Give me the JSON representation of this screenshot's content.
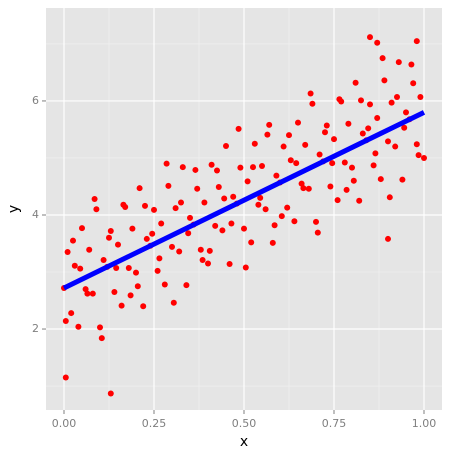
{
  "chart_data": {
    "type": "scatter",
    "x_label": "x",
    "y_label": "y",
    "color": "#ff0000",
    "xlim": [
      -0.05,
      1.05
    ],
    "ylim": [
      0.58,
      7.63
    ],
    "xticks": [
      {
        "value": 0,
        "label": "0.00"
      },
      {
        "value": 0.25,
        "label": "0.25"
      },
      {
        "value": 0.5,
        "label": "0.50"
      },
      {
        "value": 0.75,
        "label": "0.75"
      },
      {
        "value": 1,
        "label": "1.00"
      }
    ],
    "yticks": [
      2,
      4,
      6
    ],
    "x_minor_grid": [
      0.125,
      0.375,
      0.625,
      0.875
    ],
    "y_minor_grid": [
      1,
      3,
      5,
      7
    ],
    "grid": true,
    "x": [
      0,
      0.01,
      0.02,
      0.03,
      0.04,
      0.05,
      0.06,
      0.07,
      0.08,
      0.09,
      0.1,
      0.11,
      0.12,
      0.13,
      0.14,
      0.15,
      0.16,
      0.17,
      0.18,
      0.19,
      0.2,
      0.21,
      0.22,
      0.23,
      0.24,
      0.25,
      0.26,
      0.27,
      0.28,
      0.29,
      0.3,
      0.31,
      0.32,
      0.33,
      0.34,
      0.35,
      0.36,
      0.37,
      0.38,
      0.39,
      0.4,
      0.41,
      0.42,
      0.43,
      0.44,
      0.45,
      0.46,
      0.47,
      0.48,
      0.49,
      0.5,
      0.51,
      0.52,
      0.53,
      0.54,
      0.55,
      0.56,
      0.57,
      0.58,
      0.59,
      0.6,
      0.61,
      0.62,
      0.63,
      0.64,
      0.65,
      0.66,
      0.67,
      0.68,
      0.69,
      0.7,
      0.71,
      0.72,
      0.73,
      0.74,
      0.75,
      0.76,
      0.77,
      0.78,
      0.79,
      0.8,
      0.81,
      0.82,
      0.83,
      0.84,
      0.85,
      0.86,
      0.87,
      0.88,
      0.89,
      0.9,
      0.91,
      0.92,
      0.93,
      0.94,
      0.95,
      0.96,
      0.97,
      0.98,
      0.99,
      1,
      0.005,
      0.025,
      0.045,
      0.065,
      0.085,
      0.105,
      0.125,
      0.145,
      0.165,
      0.185,
      0.205,
      0.225,
      0.245,
      0.265,
      0.285,
      0.305,
      0.325,
      0.345,
      0.365,
      0.385,
      0.405,
      0.425,
      0.445,
      0.465,
      0.485,
      0.505,
      0.525,
      0.545,
      0.565,
      0.585,
      0.605,
      0.625,
      0.645,
      0.665,
      0.685,
      0.705,
      0.725,
      0.745,
      0.765,
      0.785,
      0.805,
      0.825,
      0.845,
      0.865,
      0.885,
      0.905,
      0.925,
      0.945,
      0.965,
      0.985,
      0.13,
      0.005,
      0.85,
      0.98,
      0.87,
      0.9
    ],
    "values": [
      2.72,
      3.35,
      2.28,
      3.11,
      2.04,
      3.77,
      2.7,
      3.39,
      2.62,
      4.1,
      2.03,
      3.21,
      3.09,
      3.72,
      2.65,
      3.48,
      2.41,
      4.14,
      3.07,
      3.76,
      2.99,
      4.47,
      2.4,
      3.58,
      3.46,
      4.09,
      3.02,
      3.85,
      2.78,
      4.51,
      3.44,
      4.12,
      3.36,
      4.84,
      2.77,
      3.95,
      3.83,
      4.46,
      3.39,
      4.22,
      3.15,
      4.88,
      3.81,
      4.49,
      3.73,
      5.21,
      3.14,
      4.32,
      4.2,
      4.83,
      3.76,
      4.59,
      3.52,
      5.25,
      4.18,
      4.86,
      4.1,
      5.58,
      3.51,
      4.69,
      4.57,
      5.2,
      4.13,
      4.96,
      3.89,
      5.62,
      4.55,
      5.23,
      4.46,
      5.95,
      3.88,
      5.06,
      4.94,
      5.57,
      4.5,
      5.33,
      4.26,
      5.99,
      4.92,
      5.6,
      4.83,
      6.32,
      4.25,
      5.43,
      5.31,
      5.94,
      4.87,
      5.7,
      4.63,
      6.36,
      5.29,
      5.97,
      5.2,
      6.68,
      4.62,
      5.8,
      5.68,
      6.31,
      5.24,
      6.07,
      5.0,
      2.14,
      3.55,
      3.06,
      2.62,
      4.28,
      1.84,
      3.6,
      3.07,
      4.18,
      2.59,
      2.75,
      4.16,
      3.67,
      3.24,
      4.9,
      2.46,
      4.22,
      3.68,
      4.79,
      3.21,
      3.37,
      4.78,
      4.29,
      3.85,
      5.51,
      3.08,
      4.84,
      4.3,
      5.41,
      3.82,
      3.98,
      5.4,
      4.91,
      4.47,
      6.13,
      3.69,
      5.45,
      4.91,
      6.03,
      4.44,
      4.6,
      6.01,
      5.52,
      5.08,
      6.75,
      4.31,
      6.07,
      5.53,
      6.64,
      5.05,
      0.87,
      1.15,
      7.12,
      7.05,
      7.02,
      3.58
    ],
    "trend": {
      "type": "line",
      "color": "#0000ff",
      "x": [
        0,
        1
      ],
      "values": [
        2.72,
        5.8
      ]
    }
  }
}
